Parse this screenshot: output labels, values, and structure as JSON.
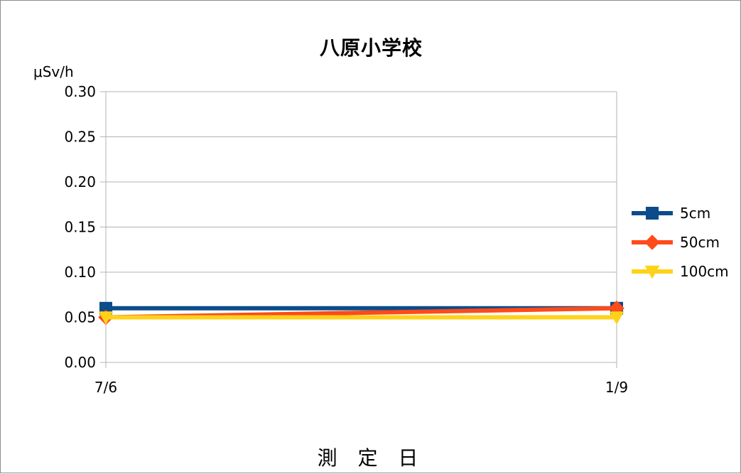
{
  "chart_data": {
    "type": "line",
    "title": "八原小学校",
    "ylabel": "μSv/h",
    "xlabel": "測 定 日",
    "categories": [
      "7/6",
      "1/9"
    ],
    "ylim": [
      0,
      0.3
    ],
    "yticks": [
      "0.00",
      "0.05",
      "0.10",
      "0.15",
      "0.20",
      "0.25",
      "0.30"
    ],
    "grid": true,
    "legend_position": "right",
    "series": [
      {
        "name": "5cm",
        "values": [
          0.06,
          0.06
        ],
        "color": "#0b4c8a",
        "marker": "square"
      },
      {
        "name": "50cm",
        "values": [
          0.05,
          0.06
        ],
        "color": "#ff4a1a",
        "marker": "diamond"
      },
      {
        "name": "100cm",
        "values": [
          0.05,
          0.05
        ],
        "color": "#ffd21a",
        "marker": "triangle-down"
      }
    ]
  }
}
